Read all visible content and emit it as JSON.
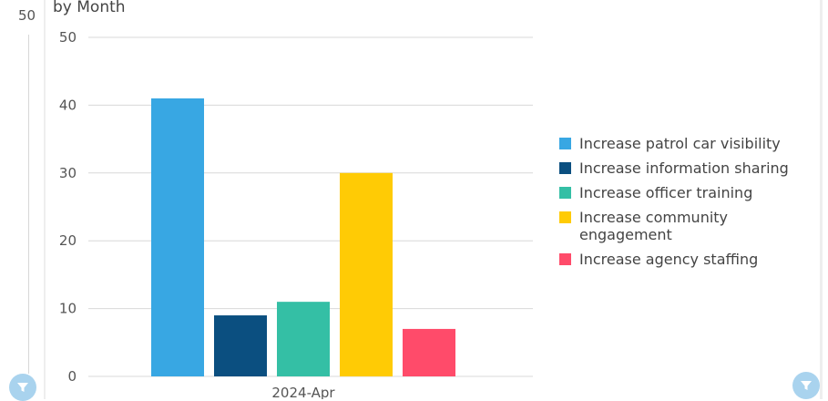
{
  "subtitle": "by Month",
  "side_axis": {
    "top_tick": "50"
  },
  "colors": {
    "background": "#ffffff",
    "grid": "#d8d8d8",
    "filter_button": "#a9d3ee"
  },
  "icons": {
    "filter": "filter-icon"
  },
  "chart_data": {
    "type": "bar",
    "categories": [
      "2024-Apr"
    ],
    "series": [
      {
        "name": "Increase patrol car visibility",
        "color": "#38a7e3",
        "values": [
          41
        ]
      },
      {
        "name": "Increase information sharing",
        "color": "#0b4f80",
        "values": [
          9
        ]
      },
      {
        "name": "Increase officer training",
        "color": "#34bfa5",
        "values": [
          11
        ]
      },
      {
        "name": "Increase community engagement",
        "color": "#ffcb05",
        "values": [
          30
        ]
      },
      {
        "name": "Increase agency staffing",
        "color": "#ff4b6a",
        "values": [
          7
        ]
      }
    ],
    "yticks": [
      "0",
      "10",
      "20",
      "30",
      "40",
      "50"
    ],
    "ylim": [
      0,
      50
    ],
    "grid": true,
    "legend_position": "right"
  }
}
